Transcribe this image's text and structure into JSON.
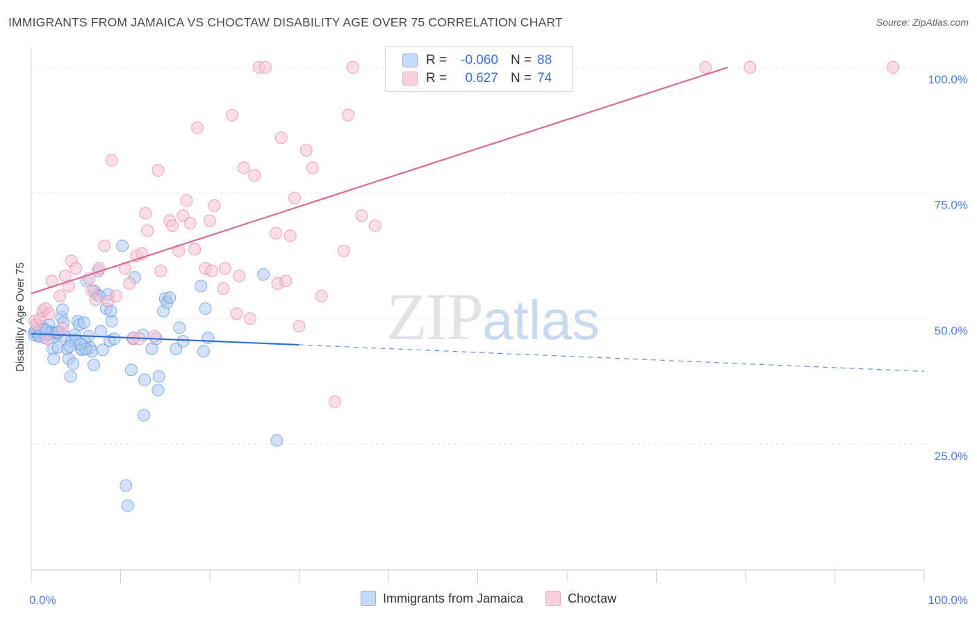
{
  "title": "IMMIGRANTS FROM JAMAICA VS CHOCTAW DISABILITY AGE OVER 75 CORRELATION CHART",
  "source": "Source: ZipAtlas.com",
  "watermark": {
    "zip": "ZIP",
    "atlas": "atlas"
  },
  "legend": {
    "rows": [
      {
        "r_label": "R =",
        "r_value": "-0.060",
        "n_label": "N =",
        "n_value": "88",
        "color": "#8ab4ec"
      },
      {
        "r_label": "R =",
        "r_value": "0.627",
        "n_label": "N =",
        "n_value": "74",
        "color": "#f3a7bf"
      }
    ]
  },
  "bottom_legend": [
    {
      "label": "Immigrants from Jamaica",
      "color": "#aecbf2"
    },
    {
      "label": "Choctaw",
      "color": "#f7c3d3"
    }
  ],
  "chart_data": {
    "type": "scatter",
    "title": "IMMIGRANTS FROM JAMAICA VS CHOCTAW DISABILITY AGE OVER 75 CORRELATION CHART",
    "xlabel": "",
    "ylabel": "Disability Age Over 75",
    "xlim": [
      0,
      100
    ],
    "ylim": [
      0,
      104
    ],
    "x_tick_labels": [
      "0.0%",
      "100.0%"
    ],
    "y_ticks": [
      25,
      50,
      75,
      100
    ],
    "y_tick_labels": [
      "25.0%",
      "50.0%",
      "75.0%",
      "100.0%"
    ],
    "grid": true,
    "series": [
      {
        "name": "Immigrants from Jamaica",
        "color": "#5b92e0",
        "fill": "#aecbf2",
        "trend": {
          "x0": 0,
          "y0": 47.0,
          "x1": 30,
          "y1": 44.8,
          "dashed_to_x": 100,
          "dashed_to_y": 39.5
        },
        "points": [
          [
            0.3,
            46.8
          ],
          [
            0.5,
            47.5
          ],
          [
            0.6,
            48.0
          ],
          [
            0.8,
            46.5
          ],
          [
            1.0,
            47.2
          ],
          [
            1.2,
            48.5
          ],
          [
            1.4,
            47.0
          ],
          [
            1.5,
            46.2
          ],
          [
            1.7,
            46.8
          ],
          [
            1.8,
            47.6
          ],
          [
            2.0,
            48.8
          ],
          [
            2.2,
            47.3
          ],
          [
            2.4,
            44.0
          ],
          [
            2.5,
            42.0
          ],
          [
            2.7,
            46.5
          ],
          [
            2.9,
            47.0
          ],
          [
            3.0,
            44.3
          ],
          [
            3.2,
            47.5
          ],
          [
            3.4,
            50.3
          ],
          [
            3.5,
            51.8
          ],
          [
            3.6,
            49.2
          ],
          [
            3.8,
            46.5
          ],
          [
            4.0,
            44.0
          ],
          [
            4.2,
            42.0
          ],
          [
            4.4,
            38.5
          ],
          [
            4.5,
            45.5
          ],
          [
            4.7,
            41.0
          ],
          [
            4.9,
            46.8
          ],
          [
            5.0,
            45.8
          ],
          [
            5.2,
            49.5
          ],
          [
            5.4,
            48.8
          ],
          [
            5.6,
            44.0
          ],
          [
            5.7,
            43.8
          ],
          [
            5.9,
            49.2
          ],
          [
            6.0,
            45.5
          ],
          [
            6.2,
            57.5
          ],
          [
            6.4,
            46.5
          ],
          [
            6.6,
            44.2
          ],
          [
            6.8,
            43.5
          ],
          [
            7.0,
            40.8
          ],
          [
            7.1,
            55.5
          ],
          [
            7.3,
            54.8
          ],
          [
            7.5,
            59.5
          ],
          [
            7.8,
            47.5
          ],
          [
            8.0,
            43.8
          ],
          [
            8.4,
            52.0
          ],
          [
            8.6,
            54.8
          ],
          [
            8.8,
            45.6
          ],
          [
            9.0,
            49.5
          ],
          [
            9.3,
            46.0
          ],
          [
            10.2,
            64.5
          ],
          [
            10.6,
            16.8
          ],
          [
            10.8,
            12.8
          ],
          [
            11.2,
            39.8
          ],
          [
            11.4,
            46.0
          ],
          [
            11.6,
            58.2
          ],
          [
            12.5,
            46.8
          ],
          [
            12.6,
            30.8
          ],
          [
            12.7,
            37.8
          ],
          [
            13.5,
            44.0
          ],
          [
            14.0,
            46.0
          ],
          [
            14.2,
            35.8
          ],
          [
            14.3,
            38.5
          ],
          [
            14.8,
            51.5
          ],
          [
            15.0,
            54.0
          ],
          [
            15.2,
            53.2
          ],
          [
            15.5,
            54.2
          ],
          [
            16.2,
            44.0
          ],
          [
            16.6,
            48.2
          ],
          [
            17.0,
            45.5
          ],
          [
            19.0,
            56.5
          ],
          [
            19.3,
            43.5
          ],
          [
            19.5,
            52.0
          ],
          [
            19.8,
            46.2
          ],
          [
            26.0,
            58.8
          ],
          [
            27.5,
            25.8
          ],
          [
            2.0,
            47.0
          ],
          [
            2.6,
            47.2
          ],
          [
            1.1,
            48.0
          ],
          [
            0.4,
            47.4
          ],
          [
            3.0,
            47.3
          ],
          [
            6.1,
            44.0
          ],
          [
            4.3,
            44.5
          ],
          [
            5.5,
            45.0
          ],
          [
            7.6,
            54.5
          ],
          [
            8.9,
            51.5
          ],
          [
            0.9,
            46.6
          ],
          [
            1.6,
            47.8
          ]
        ]
      },
      {
        "name": "Choctaw",
        "color": "#e87ca0",
        "fill": "#f7c3d3",
        "trend": {
          "x0": 0,
          "y0": 55.0,
          "x1": 78,
          "y1": 100.0
        },
        "points": [
          [
            0.4,
            49.5
          ],
          [
            0.6,
            48.8
          ],
          [
            1.0,
            50.0
          ],
          [
            1.3,
            51.5
          ],
          [
            1.6,
            52.0
          ],
          [
            2.0,
            51.0
          ],
          [
            2.3,
            57.5
          ],
          [
            3.2,
            54.5
          ],
          [
            3.8,
            58.5
          ],
          [
            4.2,
            56.5
          ],
          [
            4.5,
            61.5
          ],
          [
            5.0,
            60.0
          ],
          [
            6.5,
            58.0
          ],
          [
            6.8,
            55.5
          ],
          [
            7.2,
            53.8
          ],
          [
            7.6,
            60.0
          ],
          [
            8.2,
            64.5
          ],
          [
            8.6,
            53.5
          ],
          [
            9.0,
            81.5
          ],
          [
            9.5,
            54.5
          ],
          [
            10.5,
            60.0
          ],
          [
            11.0,
            57.0
          ],
          [
            11.4,
            46.2
          ],
          [
            11.8,
            62.5
          ],
          [
            12.4,
            63.0
          ],
          [
            12.8,
            71.0
          ],
          [
            13.0,
            67.5
          ],
          [
            13.8,
            46.5
          ],
          [
            14.2,
            79.5
          ],
          [
            14.5,
            59.5
          ],
          [
            15.5,
            69.5
          ],
          [
            15.8,
            68.5
          ],
          [
            16.5,
            63.5
          ],
          [
            17.0,
            70.5
          ],
          [
            17.4,
            73.5
          ],
          [
            17.8,
            69.0
          ],
          [
            18.3,
            63.8
          ],
          [
            18.6,
            88.0
          ],
          [
            19.5,
            60.0
          ],
          [
            20.0,
            69.5
          ],
          [
            20.2,
            59.5
          ],
          [
            20.5,
            72.5
          ],
          [
            21.5,
            56.0
          ],
          [
            21.7,
            60.0
          ],
          [
            22.5,
            90.5
          ],
          [
            23.0,
            51.0
          ],
          [
            23.3,
            58.5
          ],
          [
            23.8,
            80.0
          ],
          [
            24.5,
            50.0
          ],
          [
            25.0,
            78.5
          ],
          [
            25.5,
            100.0
          ],
          [
            26.2,
            100.0
          ],
          [
            27.4,
            67.0
          ],
          [
            27.6,
            57.0
          ],
          [
            28.0,
            86.0
          ],
          [
            28.5,
            57.5
          ],
          [
            29.0,
            66.5
          ],
          [
            29.5,
            74.0
          ],
          [
            30.0,
            48.5
          ],
          [
            30.8,
            83.5
          ],
          [
            31.5,
            80.0
          ],
          [
            32.5,
            54.5
          ],
          [
            34.0,
            33.5
          ],
          [
            35.0,
            63.5
          ],
          [
            35.5,
            90.5
          ],
          [
            36.0,
            100.0
          ],
          [
            37.0,
            70.5
          ],
          [
            38.5,
            68.5
          ],
          [
            75.5,
            100.0
          ],
          [
            80.5,
            100.0
          ],
          [
            96.5,
            100.0
          ],
          [
            3.5,
            48.0
          ],
          [
            1.8,
            46.0
          ],
          [
            12.1,
            46.0
          ]
        ]
      }
    ]
  }
}
